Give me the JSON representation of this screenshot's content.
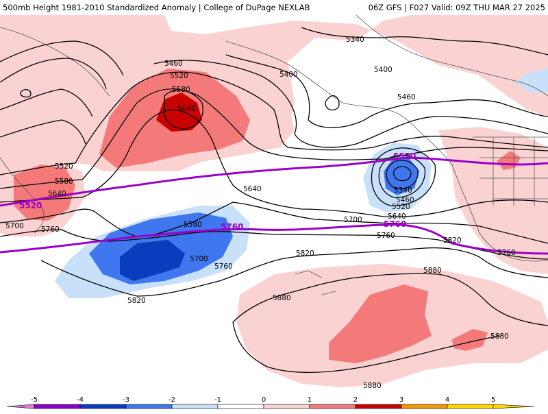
{
  "header": {
    "title_left": "500mb Height 1981-2010 Standardized Anomaly | College of DuPage NEXLAB",
    "title_right": "06Z GFS | F027 Valid: 09Z THU MAR 27 2025"
  },
  "colors": {
    "anom_p1": "#fbd2d2",
    "anom_p2": "#f47a7a",
    "anom_p3": "#c80000",
    "anom_p4": "#f09a00",
    "anom_p5": "#ffd700",
    "anom_n1": "#c8e0fa",
    "anom_n2": "#3f78ee",
    "anom_n3": "#0a3cbe",
    "anom_n4": "#8a00c8",
    "anom_n5": "#e07ae0",
    "highlight_contour": "#9a00c8",
    "contour": "#000000"
  },
  "contour_labels": {
    "c5340_a": "5340",
    "c5400_a": "5400",
    "c5400_b": "5400",
    "c5460_a": "5460",
    "c5460_b": "5460",
    "c5520_a": "5520",
    "c5520_b": "5520",
    "c5520_c": "5520",
    "c5580_a": "5580",
    "c5580_b": "5580",
    "c5580_c": "5580",
    "c5640_a": "5640",
    "c5640_b": "5640",
    "c5640_c": "5640",
    "c5640_d": "5640",
    "c5700_a": "5700",
    "c5700_b": "5700",
    "c5700_c": "5700",
    "c5760_a": "5760",
    "c5760_b": "5760",
    "c5760_c": "5760",
    "c5760_d": "5760",
    "c5820_a": "5820",
    "c5820_b": "5820",
    "c5820_c": "5820",
    "c5880_a": "5880",
    "c5880_b": "5880",
    "c5880_c": "5880",
    "c5880_d": "5880",
    "c5340_low": "5340",
    "c5460_low": "5460"
  },
  "highlight_labels": {
    "h5520_a": "5520",
    "h5520_b": "5520",
    "h5760_a": "5760",
    "h5760_b": "5760"
  },
  "colorbar": {
    "ticks": [
      "-5",
      "-4",
      "-3",
      "-2",
      "-1",
      "0",
      "1",
      "2",
      "3",
      "4",
      "5"
    ],
    "segments": [
      {
        "color": "#e07ae0"
      },
      {
        "color": "#8a00c8"
      },
      {
        "color": "#0a3cbe"
      },
      {
        "color": "#3f78ee"
      },
      {
        "color": "#c8e0fa"
      },
      {
        "color": "#ffffff"
      },
      {
        "color": "#fbd2d2"
      },
      {
        "color": "#f47a7a"
      },
      {
        "color": "#c80000"
      },
      {
        "color": "#f09a00"
      },
      {
        "color": "#ffd700"
      }
    ]
  }
}
